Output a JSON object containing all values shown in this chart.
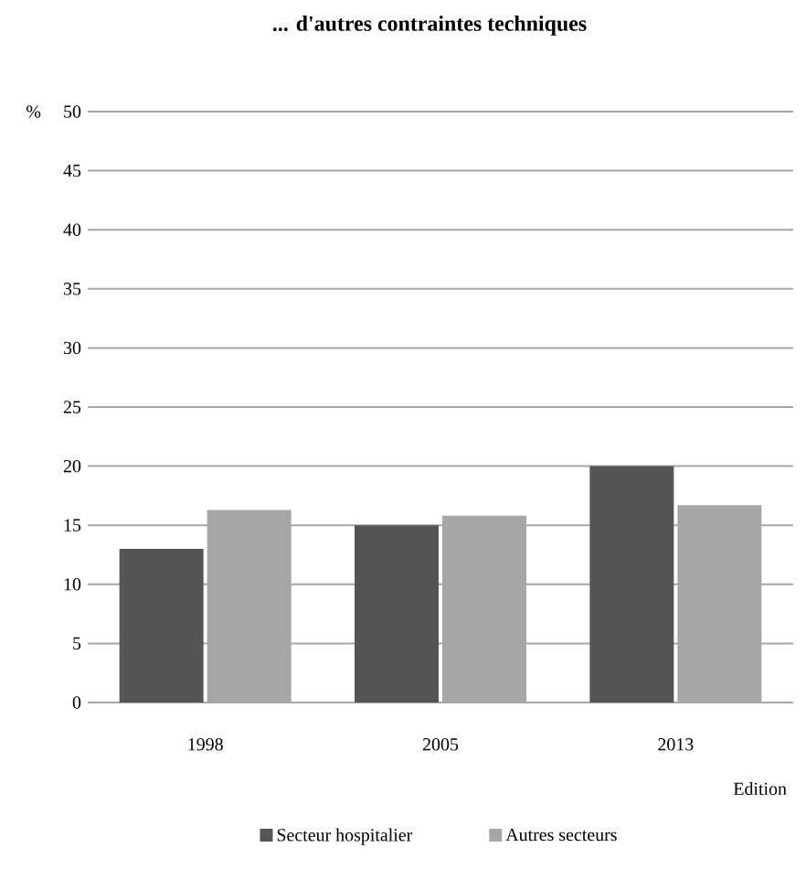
{
  "chart_data": {
    "type": "bar",
    "title": "... d'autres contraintes techniques",
    "xlabel": "Edition",
    "ylabel": "%",
    "categories": [
      "1998",
      "2005",
      "2013"
    ],
    "series": [
      {
        "name": "Secteur hospitalier",
        "color": "#555555",
        "values": [
          13.0,
          15.0,
          20.0
        ]
      },
      {
        "name": "Autres secteurs",
        "color": "#a6a6a6",
        "values": [
          16.3,
          15.8,
          16.7
        ]
      }
    ],
    "ylim": [
      0,
      50
    ],
    "yticks": [
      0,
      5,
      10,
      15,
      20,
      25,
      30,
      35,
      40,
      45,
      50
    ],
    "grid": "y",
    "legend": "bottom"
  }
}
